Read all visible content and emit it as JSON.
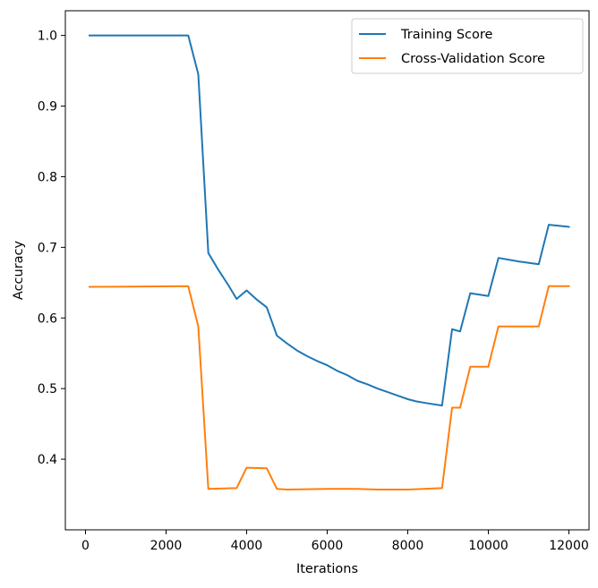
{
  "chart_data": {
    "type": "line",
    "xlabel": "Iterations",
    "ylabel": "Accuracy",
    "xlim": [
      -500,
      12500
    ],
    "ylim": [
      0.3,
      1.035
    ],
    "xticks": [
      0,
      2000,
      4000,
      6000,
      8000,
      10000,
      12000
    ],
    "yticks": [
      0.4,
      0.5,
      0.6,
      0.7,
      0.8,
      0.9,
      1.0
    ],
    "xtick_labels": [
      "0",
      "2000",
      "4000",
      "6000",
      "8000",
      "10000",
      "12000"
    ],
    "ytick_labels": [
      "0.4",
      "0.5",
      "0.6",
      "0.7",
      "0.8",
      "0.9",
      "1.0"
    ],
    "grid": false,
    "legend_position": "top-right",
    "series": [
      {
        "name": "Training Score",
        "color": "#1f77b4",
        "points": [
          [
            100,
            1.0
          ],
          [
            2550,
            1.0
          ],
          [
            2800,
            0.945
          ],
          [
            3050,
            0.692
          ],
          [
            3300,
            0.668
          ],
          [
            3550,
            0.646
          ],
          [
            3750,
            0.627
          ],
          [
            4000,
            0.639
          ],
          [
            4250,
            0.626
          ],
          [
            4500,
            0.615
          ],
          [
            4750,
            0.575
          ],
          [
            5000,
            0.564
          ],
          [
            5250,
            0.554
          ],
          [
            5500,
            0.546
          ],
          [
            5750,
            0.539
          ],
          [
            6000,
            0.533
          ],
          [
            6250,
            0.525
          ],
          [
            6500,
            0.519
          ],
          [
            6750,
            0.511
          ],
          [
            7000,
            0.506
          ],
          [
            7250,
            0.5
          ],
          [
            7500,
            0.495
          ],
          [
            7750,
            0.49
          ],
          [
            8000,
            0.485
          ],
          [
            8200,
            0.482
          ],
          [
            8500,
            0.479
          ],
          [
            8850,
            0.476
          ],
          [
            9100,
            0.584
          ],
          [
            9300,
            0.581
          ],
          [
            9550,
            0.635
          ],
          [
            10000,
            0.631
          ],
          [
            10250,
            0.685
          ],
          [
            10750,
            0.68
          ],
          [
            11250,
            0.676
          ],
          [
            11500,
            0.732
          ],
          [
            12000,
            0.729
          ]
        ]
      },
      {
        "name": "Cross-Validation Score",
        "color": "#ff7f0e",
        "points": [
          [
            100,
            0.644
          ],
          [
            2550,
            0.645
          ],
          [
            2800,
            0.588
          ],
          [
            3050,
            0.358
          ],
          [
            3750,
            0.359
          ],
          [
            4000,
            0.388
          ],
          [
            4500,
            0.387
          ],
          [
            4750,
            0.358
          ],
          [
            5000,
            0.357
          ],
          [
            6000,
            0.358
          ],
          [
            6750,
            0.358
          ],
          [
            7250,
            0.357
          ],
          [
            8000,
            0.357
          ],
          [
            8850,
            0.359
          ],
          [
            9100,
            0.473
          ],
          [
            9300,
            0.473
          ],
          [
            9550,
            0.531
          ],
          [
            10000,
            0.531
          ],
          [
            10250,
            0.588
          ],
          [
            11250,
            0.588
          ],
          [
            11500,
            0.645
          ],
          [
            12000,
            0.645
          ]
        ]
      }
    ]
  }
}
